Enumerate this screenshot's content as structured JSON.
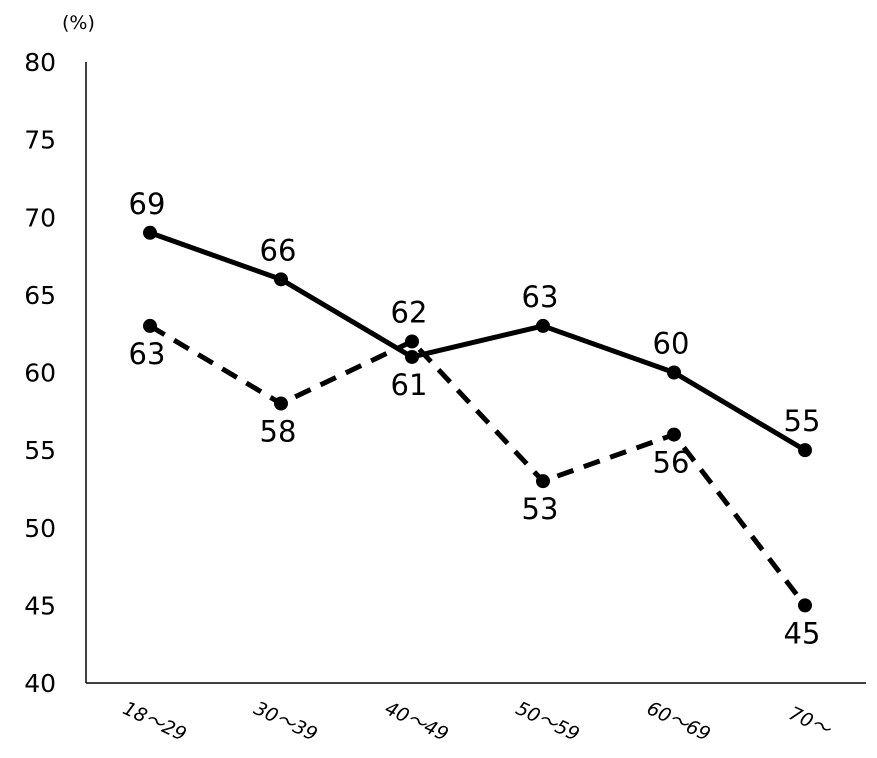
{
  "chart_data": {
    "type": "line",
    "unit_label": "(%)",
    "categories": [
      "18～29",
      "30～39",
      "40～49",
      "50～59",
      "60～69",
      "70～"
    ],
    "ylim": [
      40,
      80
    ],
    "yticks": [
      40,
      45,
      50,
      55,
      60,
      65,
      70,
      75,
      80
    ],
    "grid": false,
    "series": [
      {
        "line_style": "solid",
        "values": [
          69,
          66,
          61,
          63,
          60,
          55
        ]
      },
      {
        "line_style": "dashed",
        "values": [
          63,
          58,
          62,
          53,
          56,
          45
        ]
      }
    ]
  }
}
